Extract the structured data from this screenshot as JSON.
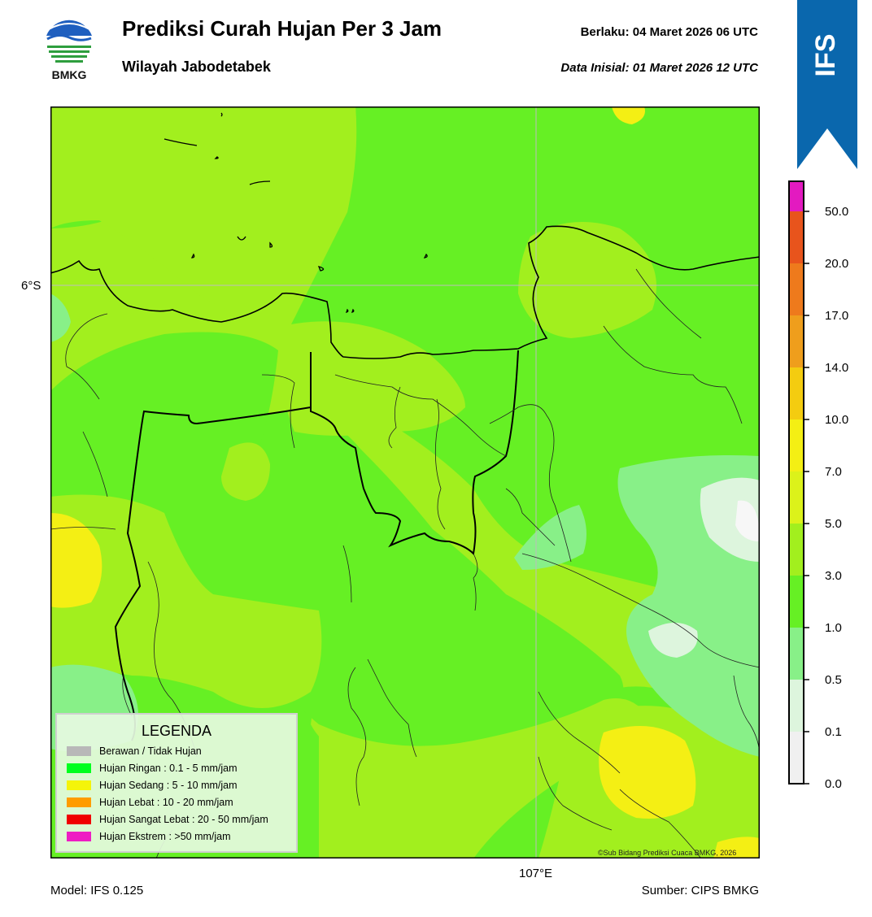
{
  "header": {
    "title": "Prediksi Curah Hujan Per 3 Jam",
    "subtitle": "Wilayah Jabodetabek",
    "valid_label": "Berlaku:  04 Maret 2026 06 UTC",
    "init_label": "Data Inisial:  01 Maret 2026 12 UTC",
    "logo_text": "BMKG",
    "model_badge": "IFS"
  },
  "map": {
    "lat_label": "6°S",
    "lon_label": "107°E",
    "copyright": "©Sub Bidang Prediksi Cuaca BMKG, 2026"
  },
  "legend": {
    "title": "LEGENDA",
    "items": [
      {
        "label": "Berawan / Tidak Hujan",
        "color": "#b8b8b8"
      },
      {
        "label": "Hujan Ringan : 0.1 - 5 mm/jam",
        "color": "#00ff1e"
      },
      {
        "label": "Hujan Sedang : 5 - 10 mm/jam",
        "color": "#f4f40a"
      },
      {
        "label": "Hujan Lebat : 10 - 20 mm/jam",
        "color": "#ff9c00"
      },
      {
        "label": "Hujan Sangat Lebat : 20 - 50 mm/jam",
        "color": "#f00000"
      },
      {
        "label": "Hujan Ekstrem : >50 mm/jam",
        "color": "#ee1cc3"
      }
    ]
  },
  "colorbar": {
    "ticks": [
      "0.0",
      "0.1",
      "0.5",
      "1.0",
      "3.0",
      "5.0",
      "7.0",
      "10.0",
      "14.0",
      "17.0",
      "20.0",
      "50.0"
    ],
    "colors": [
      "#f0f0f0",
      "#ddf5dd",
      "#88f088",
      "#66f024",
      "#a2ef1e",
      "#dcf21a",
      "#f4ef14",
      "#f4cc10",
      "#ef9e1c",
      "#ee7a1c",
      "#e8541c",
      "#e8201e",
      "#e31ac0"
    ]
  },
  "footer": {
    "model": "Model: IFS 0.125",
    "source": "Sumber: CIPS BMKG"
  }
}
